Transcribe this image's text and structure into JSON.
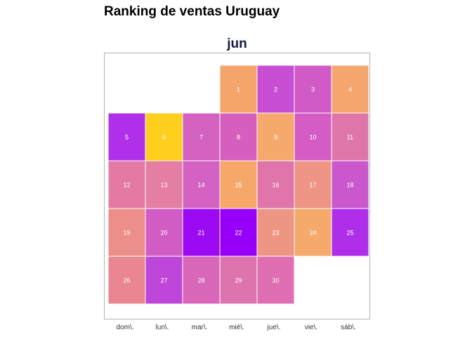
{
  "title": "Ranking de ventas Uruguay",
  "chart_data": {
    "type": "heatmap",
    "title": "Ranking de ventas Uruguay",
    "facet_label": "jun",
    "weekdays": [
      "dom\\.",
      "lun\\.",
      "mar\\.",
      "mié\\.",
      "jue\\.",
      "vie\\.",
      "sáb\\."
    ],
    "days": [
      {
        "day": 1,
        "weekday": 3,
        "week": 0,
        "color": "#f5a56b"
      },
      {
        "day": 2,
        "weekday": 4,
        "week": 0,
        "color": "#c84fd4"
      },
      {
        "day": 3,
        "weekday": 5,
        "week": 0,
        "color": "#d05ac6"
      },
      {
        "day": 4,
        "weekday": 6,
        "week": 0,
        "color": "#f4a66e"
      },
      {
        "day": 5,
        "weekday": 0,
        "week": 1,
        "color": "#b030ea"
      },
      {
        "day": 6,
        "weekday": 1,
        "week": 1,
        "color": "#fecf1c"
      },
      {
        "day": 7,
        "weekday": 2,
        "week": 1,
        "color": "#d362c0"
      },
      {
        "day": 8,
        "weekday": 3,
        "week": 1,
        "color": "#d65fbd"
      },
      {
        "day": 9,
        "weekday": 4,
        "week": 1,
        "color": "#f5a96c"
      },
      {
        "day": 10,
        "weekday": 5,
        "week": 1,
        "color": "#d45cc4"
      },
      {
        "day": 11,
        "weekday": 6,
        "week": 1,
        "color": "#df76a9"
      },
      {
        "day": 12,
        "weekday": 0,
        "week": 2,
        "color": "#e47aa4"
      },
      {
        "day": 13,
        "weekday": 1,
        "week": 2,
        "color": "#e47ea2"
      },
      {
        "day": 14,
        "weekday": 2,
        "week": 2,
        "color": "#d462c2"
      },
      {
        "day": 15,
        "weekday": 3,
        "week": 2,
        "color": "#f5a86a"
      },
      {
        "day": 16,
        "weekday": 4,
        "week": 2,
        "color": "#e075ac"
      },
      {
        "day": 17,
        "weekday": 5,
        "week": 2,
        "color": "#ee9586"
      },
      {
        "day": 18,
        "weekday": 6,
        "week": 2,
        "color": "#cb57cc"
      },
      {
        "day": 19,
        "weekday": 0,
        "week": 3,
        "color": "#ec8e8a"
      },
      {
        "day": 20,
        "weekday": 1,
        "week": 3,
        "color": "#d15dc4"
      },
      {
        "day": 21,
        "weekday": 2,
        "week": 3,
        "color": "#9b0af2"
      },
      {
        "day": 22,
        "weekday": 3,
        "week": 3,
        "color": "#9600f9"
      },
      {
        "day": 23,
        "weekday": 4,
        "week": 3,
        "color": "#ee9684"
      },
      {
        "day": 24,
        "weekday": 5,
        "week": 3,
        "color": "#f5aa6b"
      },
      {
        "day": 25,
        "weekday": 6,
        "week": 3,
        "color": "#af2ee9"
      },
      {
        "day": 26,
        "weekday": 0,
        "week": 4,
        "color": "#e9868f"
      },
      {
        "day": 27,
        "weekday": 1,
        "week": 4,
        "color": "#be46d8"
      },
      {
        "day": 28,
        "weekday": 2,
        "week": 4,
        "color": "#d866b9"
      },
      {
        "day": 29,
        "weekday": 3,
        "week": 4,
        "color": "#de74ad"
      },
      {
        "day": 30,
        "weekday": 4,
        "week": 4,
        "color": "#df6fb2"
      }
    ]
  }
}
